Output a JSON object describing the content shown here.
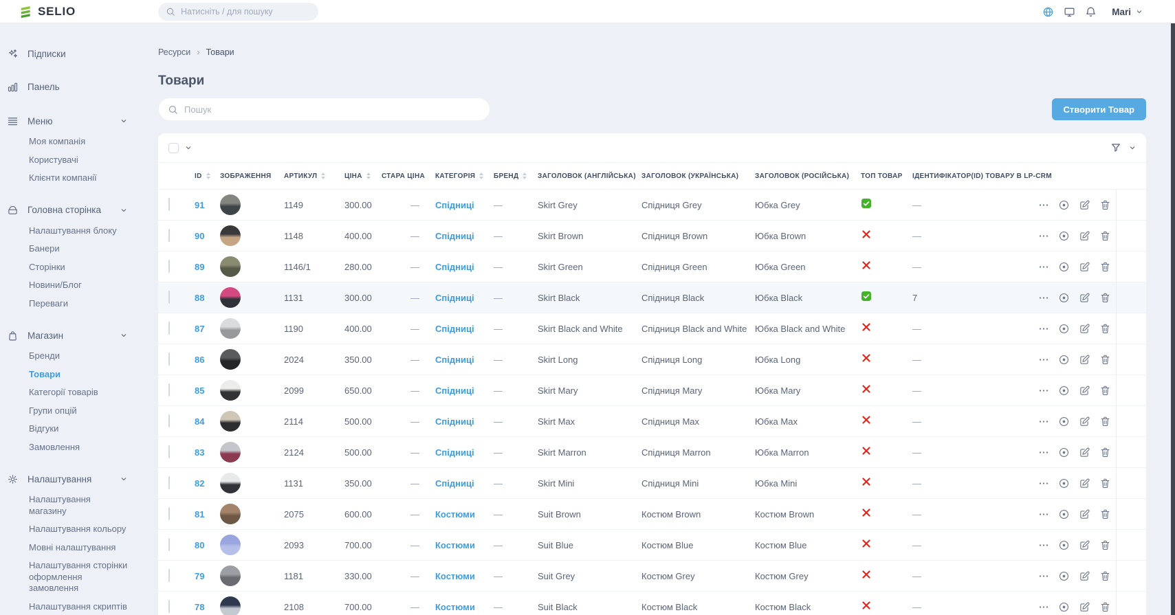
{
  "colors": {
    "accent_blue": "#3d9de0",
    "button_blue": "#57a9e1",
    "check_green": "#45b32a",
    "cross_red": "#e2251b",
    "logo_green": "#8cc63e",
    "page_bg": "#edf1f7"
  },
  "topbar": {
    "logo_text": "SELIO",
    "search_placeholder": "Натисніть / для пошуку",
    "right_icons": [
      "globe-icon",
      "monitor-icon",
      "bell-icon"
    ],
    "user_name": "Mari"
  },
  "sidebar": {
    "items": [
      {
        "name": "subscriptions",
        "icon": "sparkles",
        "label": "Підписки"
      },
      {
        "name": "dashboard",
        "icon": "bar-chart",
        "label": "Панель"
      },
      {
        "name": "menu",
        "icon": "menu",
        "label": "Меню",
        "children": [
          {
            "name": "my-company",
            "label": "Моя компанія"
          },
          {
            "name": "users",
            "label": "Користувачі"
          },
          {
            "name": "company-clients",
            "label": "Клієнти компанії"
          }
        ]
      },
      {
        "name": "homepage",
        "icon": "home-box",
        "label": "Головна сторінка",
        "children": [
          {
            "name": "block-settings",
            "label": "Налаштування блоку"
          },
          {
            "name": "banners",
            "label": "Банери"
          },
          {
            "name": "pages",
            "label": "Сторінки"
          },
          {
            "name": "news-blog",
            "label": "Новини/Блог"
          },
          {
            "name": "advantages",
            "label": "Переваги"
          }
        ]
      },
      {
        "name": "shop",
        "icon": "shopping-bag",
        "label": "Магазин",
        "children": [
          {
            "name": "brands",
            "label": "Бренди"
          },
          {
            "name": "products",
            "label": "Товари",
            "active": true
          },
          {
            "name": "product-categories",
            "label": "Категорії товарів"
          },
          {
            "name": "option-groups",
            "label": "Групи опцій"
          },
          {
            "name": "reviews",
            "label": "Відгуки"
          },
          {
            "name": "orders",
            "label": "Замовлення"
          }
        ]
      },
      {
        "name": "settings",
        "icon": "gear",
        "label": "Налаштування",
        "children": [
          {
            "name": "shop-settings",
            "label": "Налаштування магазину"
          },
          {
            "name": "color-settings",
            "label": "Налаштування кольору"
          },
          {
            "name": "language-settings",
            "label": "Мовні налаштування"
          },
          {
            "name": "checkout-page-settings",
            "label": "Налаштування сторінки оформлення замовлення"
          },
          {
            "name": "scripts-settings",
            "label": "Налаштування скриптів"
          }
        ]
      }
    ]
  },
  "breadcrumb": {
    "items": [
      "Ресурси",
      "Товари"
    ],
    "separator": "›"
  },
  "page": {
    "title": "Товари",
    "search_placeholder": "Пошук",
    "create_button": "Створити Товар"
  },
  "table": {
    "columns": [
      {
        "name": "id",
        "label": "ID",
        "sortable": true
      },
      {
        "name": "image",
        "label": "ЗОБРАЖЕННЯ",
        "sortable": false
      },
      {
        "name": "sku",
        "label": "АРТИКУЛ",
        "sortable": true
      },
      {
        "name": "price",
        "label": "ЦІНА",
        "sortable": true
      },
      {
        "name": "old-price",
        "label": "СТАРА ЦІНА",
        "sortable": false
      },
      {
        "name": "category",
        "label": "КАТЕГОРІЯ",
        "sortable": true
      },
      {
        "name": "brand",
        "label": "БРЕНД",
        "sortable": true
      },
      {
        "name": "title-en",
        "label": "ЗАГОЛОВОК (АНГЛІЙСЬКА)",
        "sortable": false
      },
      {
        "name": "title-uk",
        "label": "ЗАГОЛОВОК (УКРАЇНСЬКА)",
        "sortable": false
      },
      {
        "name": "title-ru",
        "label": "ЗАГОЛОВОК (РОСІЙСЬКА)",
        "sortable": false
      },
      {
        "name": "top-product",
        "label": "ТОП ТОВАР",
        "sortable": false
      },
      {
        "name": "lp-crm-id",
        "label": "ІДЕНТИФІКАТОР(ID) ТОВАРУ В LP-CRM",
        "sortable": false
      }
    ],
    "row_action_icons": [
      "more-actions-icon",
      "view-icon",
      "edit-icon",
      "delete-icon"
    ],
    "rows": [
      {
        "id": "91",
        "sku": "1149",
        "price": "300.00",
        "old_price": "—",
        "category": "Спідниці",
        "brand": "—",
        "title_en": "Skirt Grey",
        "title_uk": "Спідниця Grey",
        "title_ru": "Юбка Grey",
        "top": "yes",
        "lp_crm_id": "—",
        "avatar_colors": [
          "#83867f",
          "#3f4449"
        ]
      },
      {
        "id": "90",
        "sku": "1148",
        "price": "400.00",
        "old_price": "—",
        "category": "Спідниці",
        "brand": "—",
        "title_en": "Skirt Brown",
        "title_uk": "Спідниця Brown",
        "title_ru": "Юбка Brown",
        "top": "no",
        "lp_crm_id": "—",
        "avatar_colors": [
          "#39393b",
          "#c5a584"
        ]
      },
      {
        "id": "89",
        "sku": "1146/1",
        "price": "280.00",
        "old_price": "—",
        "category": "Спідниці",
        "brand": "—",
        "title_en": "Skirt Green",
        "title_uk": "Спідниця Green",
        "title_ru": "Юбка Green",
        "top": "no",
        "lp_crm_id": "—",
        "avatar_colors": [
          "#8a8a70",
          "#565a49"
        ]
      },
      {
        "id": "88",
        "sku": "1131",
        "price": "300.00",
        "old_price": "—",
        "category": "Спідниці",
        "brand": "—",
        "title_en": "Skirt Black",
        "title_uk": "Спідниця Black",
        "title_ru": "Юбка Black",
        "top": "yes",
        "lp_crm_id": "7",
        "avatar_colors": [
          "#d44a80",
          "#2f3339"
        ],
        "highlighted": true
      },
      {
        "id": "87",
        "sku": "1190",
        "price": "400.00",
        "old_price": "—",
        "category": "Спідниці",
        "brand": "—",
        "title_en": "Skirt Black and White",
        "title_uk": "Спідниця Black and White",
        "title_ru": "Юбка Black and White",
        "top": "no",
        "lp_crm_id": "—",
        "avatar_colors": [
          "#dadbdd",
          "#97999d"
        ]
      },
      {
        "id": "86",
        "sku": "2024",
        "price": "350.00",
        "old_price": "—",
        "category": "Спідниці",
        "brand": "—",
        "title_en": "Skirt Long",
        "title_uk": "Спідниця Long",
        "title_ru": "Юбка Long",
        "top": "no",
        "lp_crm_id": "—",
        "avatar_colors": [
          "#595b5e",
          "#242628"
        ]
      },
      {
        "id": "85",
        "sku": "2099",
        "price": "650.00",
        "old_price": "—",
        "category": "Спідниці",
        "brand": "—",
        "title_en": "Skirt Mary",
        "title_uk": "Спідниця Mary",
        "title_ru": "Юбка Mary",
        "top": "no",
        "lp_crm_id": "—",
        "avatar_colors": [
          "#ececea",
          "#303235"
        ]
      },
      {
        "id": "84",
        "sku": "2114",
        "price": "500.00",
        "old_price": "—",
        "category": "Спідниці",
        "brand": "—",
        "title_en": "Skirt Max",
        "title_uk": "Спідниця Max",
        "title_ru": "Юбка Max",
        "top": "no",
        "lp_crm_id": "—",
        "avatar_colors": [
          "#d0c6b6",
          "#2b2d30"
        ]
      },
      {
        "id": "83",
        "sku": "2124",
        "price": "500.00",
        "old_price": "—",
        "category": "Спідниці",
        "brand": "—",
        "title_en": "Skirt Marron",
        "title_uk": "Спідниця Marron",
        "title_ru": "Юбка Marron",
        "top": "no",
        "lp_crm_id": "—",
        "avatar_colors": [
          "#c3c7cc",
          "#8c3a52"
        ]
      },
      {
        "id": "82",
        "sku": "1131",
        "price": "350.00",
        "old_price": "—",
        "category": "Спідниці",
        "brand": "—",
        "title_en": "Skirt Mini",
        "title_uk": "Спідниця Mini",
        "title_ru": "Юбка Mini",
        "top": "no",
        "lp_crm_id": "—",
        "avatar_colors": [
          "#e8e9eb",
          "#303338"
        ]
      },
      {
        "id": "81",
        "sku": "2075",
        "price": "600.00",
        "old_price": "—",
        "category": "Костюми",
        "brand": "—",
        "title_en": "Suit Brown",
        "title_uk": "Костюм Brown",
        "title_ru": "Костюм Brown",
        "top": "no",
        "lp_crm_id": "—",
        "avatar_colors": [
          "#a3836a",
          "#6d5845"
        ]
      },
      {
        "id": "80",
        "sku": "2093",
        "price": "700.00",
        "old_price": "—",
        "category": "Костюми",
        "brand": "—",
        "title_en": "Suit Blue",
        "title_uk": "Костюм Blue",
        "title_ru": "Костюм Blue",
        "top": "no",
        "lp_crm_id": "—",
        "avatar_colors": [
          "#9aa4de",
          "#b6bfe9"
        ]
      },
      {
        "id": "79",
        "sku": "1181",
        "price": "330.00",
        "old_price": "—",
        "category": "Костюми",
        "brand": "—",
        "title_en": "Suit Grey",
        "title_uk": "Костюм Grey",
        "title_ru": "Костюм Grey",
        "top": "no",
        "lp_crm_id": "—",
        "avatar_colors": [
          "#9b9ea2",
          "#686c70"
        ]
      },
      {
        "id": "78",
        "sku": "2108",
        "price": "700.00",
        "old_price": "—",
        "category": "Костюми",
        "brand": "—",
        "title_en": "Suit Black",
        "title_uk": "Костюм Black",
        "title_ru": "Костюм Black",
        "top": "no",
        "lp_crm_id": "—",
        "avatar_colors": [
          "#30384f",
          "#c4c8d0"
        ]
      }
    ]
  }
}
